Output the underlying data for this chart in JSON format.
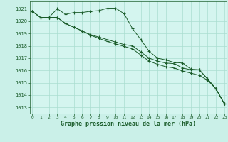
{
  "xlabel": "Graphe pression niveau de la mer (hPa)",
  "ylim": [
    1012.5,
    1021.6
  ],
  "xlim": [
    -0.3,
    23.3
  ],
  "yticks": [
    1013,
    1014,
    1015,
    1016,
    1017,
    1018,
    1019,
    1020,
    1021
  ],
  "xticks": [
    0,
    1,
    2,
    3,
    4,
    5,
    6,
    7,
    8,
    9,
    10,
    11,
    12,
    13,
    14,
    15,
    16,
    17,
    18,
    19,
    20,
    21,
    22,
    23
  ],
  "bg_color": "#caf0e8",
  "plot_bg": "#d4f5ef",
  "grid_color": "#aaddd0",
  "line_color": "#1a5c2a",
  "line1": [
    1020.8,
    1020.3,
    1020.3,
    1021.0,
    1020.55,
    1020.7,
    1020.7,
    1020.8,
    1020.85,
    1021.05,
    1021.05,
    1020.6,
    1019.4,
    1018.5,
    1017.55,
    1017.0,
    1016.85,
    1016.65,
    1016.6,
    1016.1,
    1016.05,
    1015.3,
    1014.5,
    1013.3
  ],
  "line2": [
    1020.8,
    1020.3,
    1020.3,
    1020.3,
    1019.8,
    1019.5,
    1019.2,
    1018.9,
    1018.7,
    1018.5,
    1018.3,
    1018.1,
    1018.0,
    1017.5,
    1017.0,
    1016.75,
    1016.6,
    1016.55,
    1016.2,
    1016.05,
    1016.05,
    1015.3,
    1014.5,
    1013.3
  ],
  "line3": [
    1020.8,
    1020.3,
    1020.3,
    1020.3,
    1019.8,
    1019.5,
    1019.2,
    1018.85,
    1018.6,
    1018.35,
    1018.15,
    1017.95,
    1017.75,
    1017.25,
    1016.75,
    1016.5,
    1016.3,
    1016.2,
    1015.95,
    1015.78,
    1015.6,
    1015.2,
    1014.5,
    1013.3
  ],
  "ytick_labels": [
    "1013",
    "1014",
    "1015",
    "1016",
    "1017",
    "1018",
    "1019",
    "1020",
    "1021"
  ],
  "xtick_labels": [
    "0",
    "1",
    "2",
    "3",
    "4",
    "5",
    "6",
    "7",
    "8",
    "9",
    "10",
    "11",
    "12",
    "13",
    "14",
    "15",
    "16",
    "17",
    "18",
    "19",
    "20",
    "21",
    "22",
    "23"
  ]
}
